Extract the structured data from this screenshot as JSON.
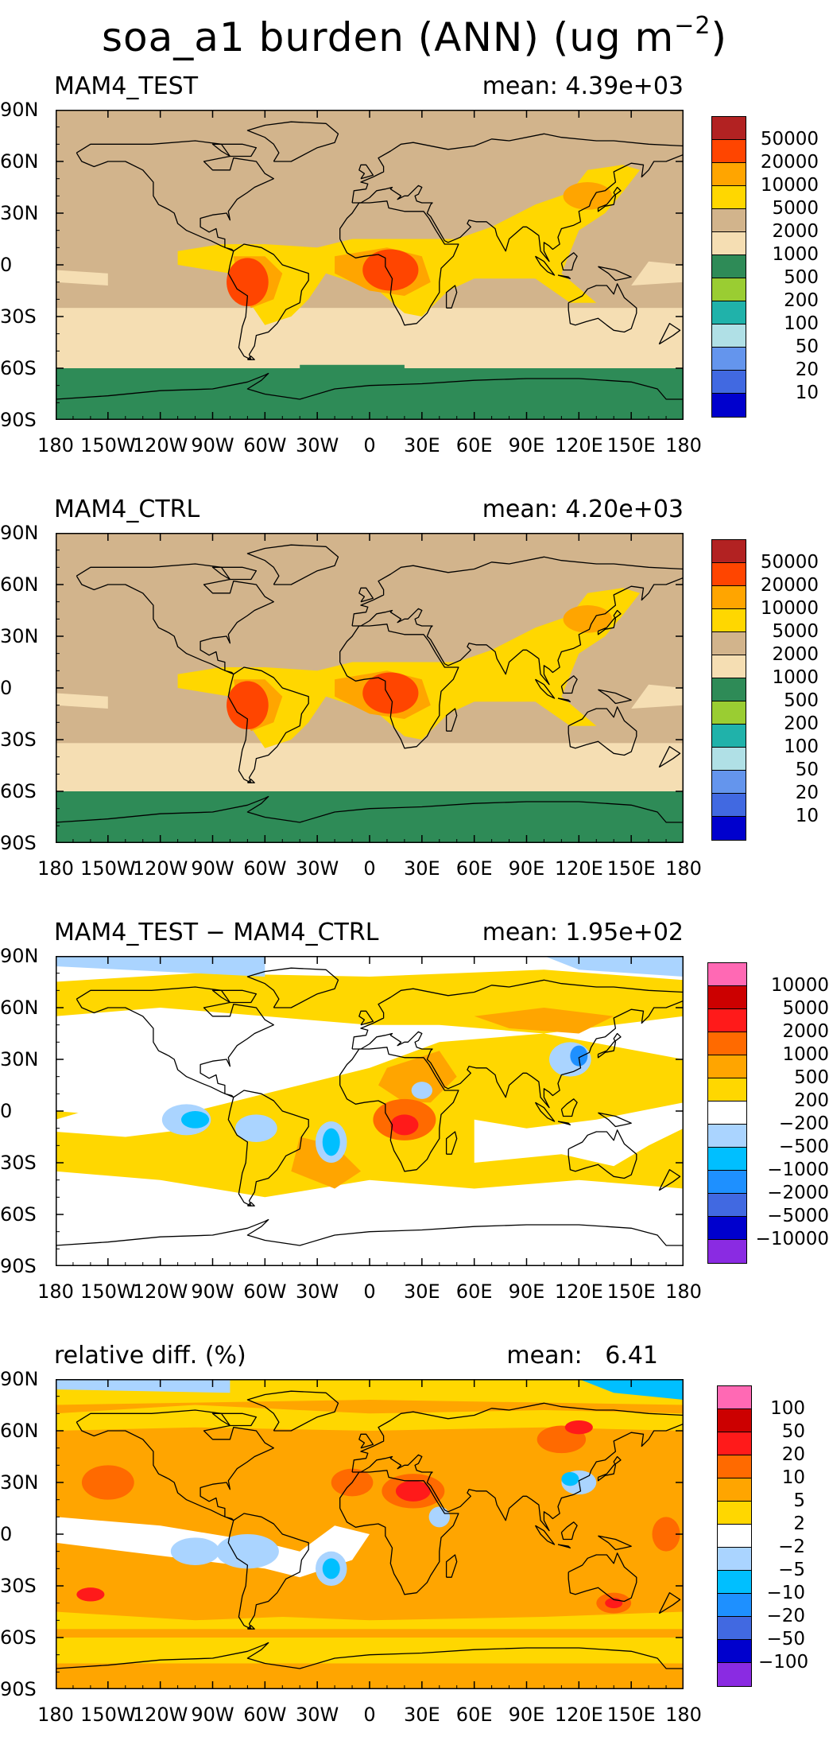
{
  "title": {
    "main": "soa_a1 burden (ANN) (ug m",
    "exp": "−2",
    "close": ")"
  },
  "lat_ticks": [
    "90N",
    "60N",
    "30N",
    "0",
    "30S",
    "60S",
    "90S"
  ],
  "lon_ticks": [
    "180",
    "150W",
    "120W",
    "90W",
    "60W",
    "30W",
    "0",
    "30E",
    "60E",
    "90E",
    "120E",
    "150E",
    "180"
  ],
  "panels": [
    {
      "title": "MAM4_TEST",
      "mean": "mean: 4.39e+03",
      "scheme": "abs",
      "colorbar": {
        "colors": [
          "#b22222",
          "#ff4500",
          "#ffa500",
          "#ffd700",
          "#d2b48c",
          "#f5deb3",
          "#2e8b57",
          "#9acd32",
          "#20b2aa",
          "#b0e0e6",
          "#6495ed",
          "#4169e1",
          "#0000cd"
        ],
        "labels": [
          "50000",
          "20000",
          "10000",
          "5000",
          "2000",
          "1000",
          "500",
          "200",
          "100",
          "50",
          "20",
          "10"
        ]
      }
    },
    {
      "title": "MAM4_CTRL",
      "mean": "mean: 4.20e+03",
      "scheme": "abs",
      "colorbar": {
        "colors": [
          "#b22222",
          "#ff4500",
          "#ffa500",
          "#ffd700",
          "#d2b48c",
          "#f5deb3",
          "#2e8b57",
          "#9acd32",
          "#20b2aa",
          "#b0e0e6",
          "#6495ed",
          "#4169e1",
          "#0000cd"
        ],
        "labels": [
          "50000",
          "20000",
          "10000",
          "5000",
          "2000",
          "1000",
          "500",
          "200",
          "100",
          "50",
          "20",
          "10"
        ]
      }
    },
    {
      "title": "MAM4_TEST − MAM4_CTRL",
      "mean": "mean: 1.95e+02",
      "scheme": "diff",
      "colorbar": {
        "colors": [
          "#ff69b4",
          "#cc0000",
          "#ff1a1a",
          "#ff6a00",
          "#ffa500",
          "#ffd700",
          "#ffffff",
          "#aad4ff",
          "#00bfff",
          "#1e90ff",
          "#4169e1",
          "#0000cd",
          "#8a2be2"
        ],
        "labels": [
          "10000",
          "5000",
          "2000",
          "1000",
          "500",
          "200",
          "−200",
          "−500",
          "−1000",
          "−2000",
          "−5000",
          "−10000"
        ]
      }
    },
    {
      "title": "relative diff. (%)",
      "mean": "mean:   6.41",
      "scheme": "rel",
      "colorbar": {
        "colors": [
          "#ff69b4",
          "#cc0000",
          "#ff1a1a",
          "#ff6a00",
          "#ffa500",
          "#ffd700",
          "#ffffff",
          "#aad4ff",
          "#00bfff",
          "#1e90ff",
          "#4169e1",
          "#0000cd",
          "#8a2be2"
        ],
        "labels": [
          "100",
          "50",
          "20",
          "10",
          "5",
          "2",
          "−2",
          "−5",
          "−10",
          "−20",
          "−50",
          "−100"
        ]
      }
    }
  ]
}
